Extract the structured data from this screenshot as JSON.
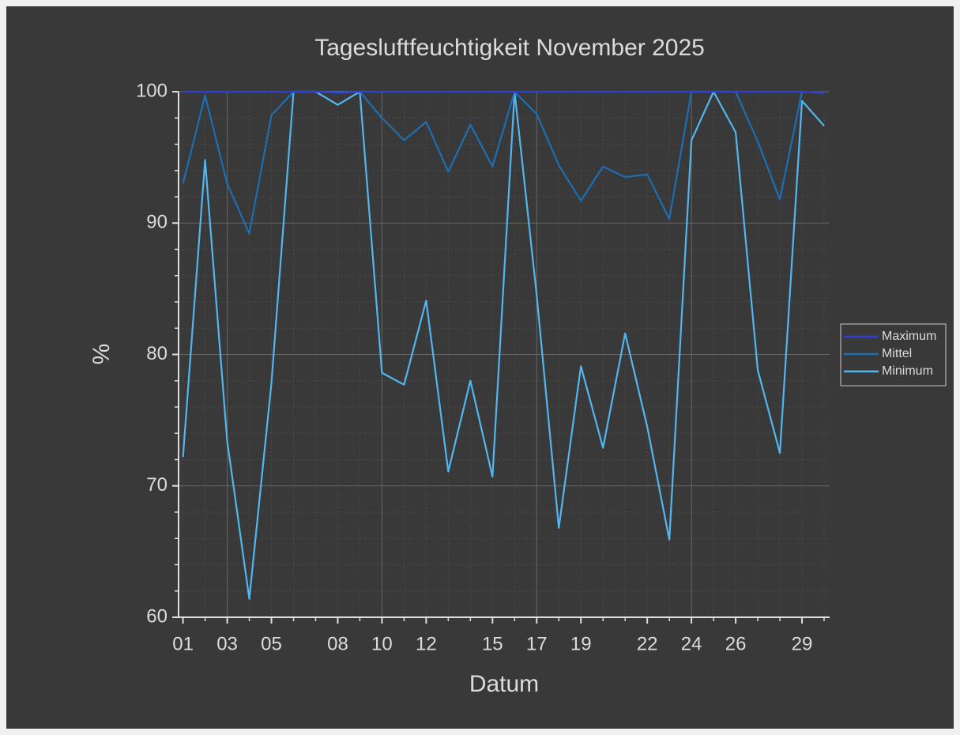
{
  "chart_data": {
    "type": "line",
    "title": "Tagesluftfeuchtigkeit November 2025",
    "xlabel": "Datum",
    "ylabel": "%",
    "x": [
      1,
      2,
      3,
      4,
      5,
      6,
      7,
      8,
      9,
      10,
      11,
      12,
      13,
      14,
      15,
      16,
      17,
      18,
      19,
      20,
      21,
      22,
      23,
      24,
      25,
      26,
      27,
      28,
      29,
      30
    ],
    "series": [
      {
        "name": "Maximum",
        "color": "#2f3fd8",
        "values": [
          100,
          100,
          100,
          100,
          100,
          100,
          100,
          99.9,
          100,
          100,
          100,
          100,
          100,
          100,
          100,
          100,
          100,
          100,
          100,
          100,
          100,
          100,
          100,
          100,
          100,
          100,
          100,
          100,
          100,
          99.9
        ]
      },
      {
        "name": "Mittel",
        "color": "#1b6fb2",
        "values": [
          93.0,
          99.7,
          93.0,
          89.2,
          98.2,
          100,
          100,
          100,
          100,
          98.0,
          96.3,
          97.7,
          93.9,
          97.5,
          94.3,
          100,
          98.3,
          94.4,
          91.7,
          94.3,
          93.5,
          93.7,
          90.3,
          100,
          100,
          100,
          96.2,
          91.8,
          100,
          99.9
        ]
      },
      {
        "name": "Minimum",
        "color": "#52b6f0",
        "values": [
          72.2,
          94.8,
          73.4,
          61.4,
          77.8,
          100,
          100,
          99.0,
          100,
          78.6,
          77.7,
          84.1,
          71.1,
          78.0,
          70.7,
          100,
          84.5,
          66.8,
          79.1,
          72.9,
          81.6,
          74.5,
          65.9,
          96.3,
          100,
          96.9,
          78.8,
          72.5,
          99.3,
          97.4
        ]
      }
    ],
    "xlim": [
      0.8,
      30.25
    ],
    "xticks": [
      {
        "value": 1,
        "label": "01"
      },
      {
        "value": 3,
        "label": "03"
      },
      {
        "value": 5,
        "label": "05"
      },
      {
        "value": 8,
        "label": "08"
      },
      {
        "value": 10,
        "label": "10"
      },
      {
        "value": 12,
        "label": "12"
      },
      {
        "value": 15,
        "label": "15"
      },
      {
        "value": 17,
        "label": "17"
      },
      {
        "value": 19,
        "label": "19"
      },
      {
        "value": 22,
        "label": "22"
      },
      {
        "value": 24,
        "label": "24"
      },
      {
        "value": 26,
        "label": "26"
      },
      {
        "value": 29,
        "label": "29"
      }
    ],
    "xgrid": [
      3,
      10,
      17,
      24
    ],
    "ylim": [
      60,
      100
    ],
    "yticks": [
      60,
      70,
      80,
      90,
      100
    ],
    "yminorticks": [
      62,
      64,
      66,
      68,
      72,
      74,
      76,
      78,
      82,
      84,
      86,
      88,
      92,
      94,
      96,
      98
    ],
    "grid": true,
    "legend": "right"
  }
}
